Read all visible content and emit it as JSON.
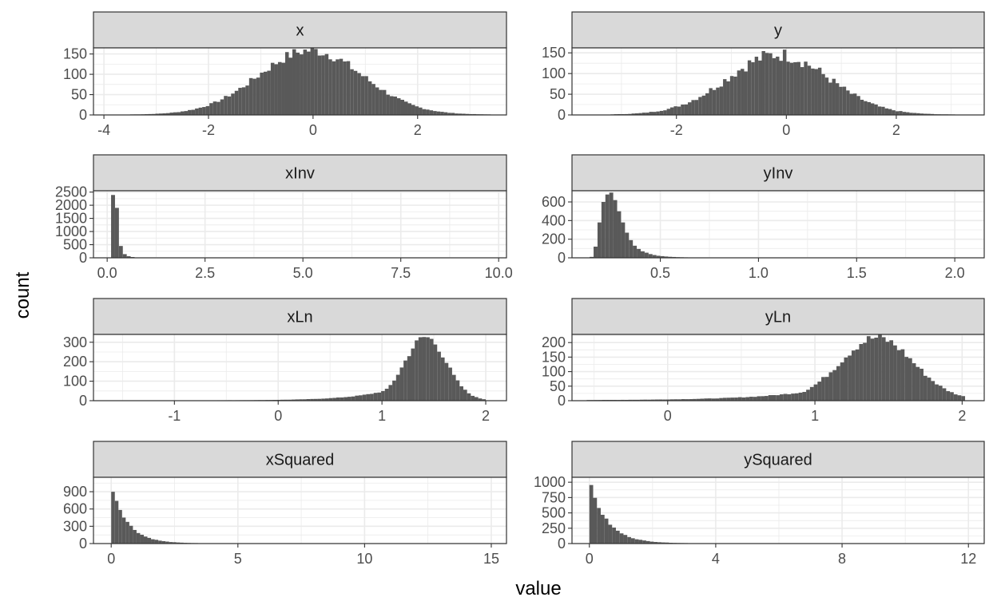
{
  "xlabel": "value",
  "ylabel": "count",
  "colors": {
    "bar": "#595959",
    "strip_bg": "#d9d9d9",
    "panel_border": "#333333",
    "grid": "#ebebeb",
    "tick_text": "#4d4d4d"
  },
  "chart_data": [
    {
      "type": "bar",
      "title": "x",
      "xlim": [
        -4.2,
        3.7
      ],
      "ylim": [
        0,
        165
      ],
      "xticks": [
        {
          "v": -4,
          "label": "-4"
        },
        {
          "v": -2,
          "label": "-2"
        },
        {
          "v": 0,
          "label": "0"
        },
        {
          "v": 2,
          "label": "2"
        }
      ],
      "yticks": [
        {
          "v": 0,
          "label": "0"
        },
        {
          "v": 50,
          "label": "50"
        },
        {
          "v": 100,
          "label": "100"
        },
        {
          "v": 150,
          "label": "150"
        }
      ],
      "hist": {
        "start": -3.5,
        "end": 3.4,
        "center": -0.05,
        "sd": 1.0,
        "peak": 158,
        "floor": 0.8,
        "noise": 0.09
      }
    },
    {
      "type": "bar",
      "title": "y",
      "xlim": [
        -3.9,
        3.6
      ],
      "ylim": [
        0,
        162
      ],
      "xticks": [
        {
          "v": -2,
          "label": "-2"
        },
        {
          "v": 0,
          "label": "0"
        },
        {
          "v": 2,
          "label": "2"
        }
      ],
      "yticks": [
        {
          "v": 0,
          "label": "0"
        },
        {
          "v": 50,
          "label": "50"
        },
        {
          "v": 100,
          "label": "100"
        },
        {
          "v": 150,
          "label": "150"
        }
      ],
      "hist": {
        "start": -3.2,
        "end": 3.2,
        "center": -0.15,
        "sd": 0.92,
        "peak": 145,
        "floor": 0.8,
        "noise": 0.12
      }
    },
    {
      "type": "bar",
      "title": "xInv",
      "xlim": [
        -0.35,
        10.2
      ],
      "ylim": [
        0,
        2550
      ],
      "xticks": [
        {
          "v": 0,
          "label": "0.0"
        },
        {
          "v": 2.5,
          "label": "2.5"
        },
        {
          "v": 5,
          "label": "5.0"
        },
        {
          "v": 7.5,
          "label": "7.5"
        },
        {
          "v": 10,
          "label": "10.0"
        }
      ],
      "yticks": [
        {
          "v": 0,
          "label": "0"
        },
        {
          "v": 500,
          "label": "500"
        },
        {
          "v": 1000,
          "label": "1000"
        },
        {
          "v": 1500,
          "label": "1500"
        },
        {
          "v": 2000,
          "label": "2000"
        },
        {
          "v": 2500,
          "label": "2500"
        }
      ],
      "bars": [
        {
          "x0": 0.0,
          "x1": 0.1,
          "c": 15
        },
        {
          "x0": 0.1,
          "x1": 0.2,
          "c": 2390
        },
        {
          "x0": 0.2,
          "x1": 0.3,
          "c": 1900
        },
        {
          "x0": 0.3,
          "x1": 0.4,
          "c": 450
        },
        {
          "x0": 0.4,
          "x1": 0.5,
          "c": 140
        },
        {
          "x0": 0.5,
          "x1": 0.6,
          "c": 60
        },
        {
          "x0": 0.6,
          "x1": 0.7,
          "c": 30
        },
        {
          "x0": 0.7,
          "x1": 0.8,
          "c": 15
        },
        {
          "x0": 0.8,
          "x1": 0.9,
          "c": 8
        },
        {
          "x0": 0.9,
          "x1": 1.0,
          "c": 5
        },
        {
          "x0": 1.0,
          "x1": 1.1,
          "c": 3
        }
      ]
    },
    {
      "type": "bar",
      "title": "yInv",
      "xlim": [
        0.05,
        2.15
      ],
      "ylim": [
        0,
        720
      ],
      "xticks": [
        {
          "v": 0.5,
          "label": "0.5"
        },
        {
          "v": 1.0,
          "label": "1.0"
        },
        {
          "v": 1.5,
          "label": "1.5"
        },
        {
          "v": 2.0,
          "label": "2.0"
        }
      ],
      "yticks": [
        {
          "v": 0,
          "label": "0"
        },
        {
          "v": 200,
          "label": "200"
        },
        {
          "v": 400,
          "label": "400"
        },
        {
          "v": 600,
          "label": "600"
        }
      ],
      "bars": [
        {
          "x0": 0.14,
          "x1": 0.16,
          "c": 10
        },
        {
          "x0": 0.16,
          "x1": 0.18,
          "c": 120
        },
        {
          "x0": 0.18,
          "x1": 0.2,
          "c": 380
        },
        {
          "x0": 0.2,
          "x1": 0.22,
          "c": 600
        },
        {
          "x0": 0.22,
          "x1": 0.24,
          "c": 680
        },
        {
          "x0": 0.24,
          "x1": 0.26,
          "c": 700
        },
        {
          "x0": 0.26,
          "x1": 0.28,
          "c": 620
        },
        {
          "x0": 0.28,
          "x1": 0.3,
          "c": 500
        },
        {
          "x0": 0.3,
          "x1": 0.32,
          "c": 380
        },
        {
          "x0": 0.32,
          "x1": 0.34,
          "c": 270
        },
        {
          "x0": 0.34,
          "x1": 0.36,
          "c": 190
        },
        {
          "x0": 0.36,
          "x1": 0.38,
          "c": 130
        },
        {
          "x0": 0.38,
          "x1": 0.4,
          "c": 95
        },
        {
          "x0": 0.4,
          "x1": 0.42,
          "c": 70
        },
        {
          "x0": 0.42,
          "x1": 0.44,
          "c": 55
        },
        {
          "x0": 0.44,
          "x1": 0.46,
          "c": 40
        },
        {
          "x0": 0.46,
          "x1": 0.48,
          "c": 30
        },
        {
          "x0": 0.48,
          "x1": 0.5,
          "c": 22
        },
        {
          "x0": 0.5,
          "x1": 0.52,
          "c": 18
        },
        {
          "x0": 0.52,
          "x1": 0.54,
          "c": 14
        },
        {
          "x0": 0.54,
          "x1": 0.56,
          "c": 11
        },
        {
          "x0": 0.56,
          "x1": 0.58,
          "c": 9
        },
        {
          "x0": 0.58,
          "x1": 0.6,
          "c": 7
        },
        {
          "x0": 0.6,
          "x1": 0.62,
          "c": 6
        },
        {
          "x0": 0.62,
          "x1": 0.64,
          "c": 5
        },
        {
          "x0": 0.64,
          "x1": 0.66,
          "c": 4
        },
        {
          "x0": 0.66,
          "x1": 0.68,
          "c": 4
        },
        {
          "x0": 0.68,
          "x1": 0.7,
          "c": 3
        },
        {
          "x0": 0.7,
          "x1": 0.72,
          "c": 3
        },
        {
          "x0": 0.72,
          "x1": 0.74,
          "c": 3
        },
        {
          "x0": 0.74,
          "x1": 0.76,
          "c": 2
        },
        {
          "x0": 0.76,
          "x1": 0.78,
          "c": 2
        },
        {
          "x0": 0.78,
          "x1": 0.8,
          "c": 2
        },
        {
          "x0": 0.8,
          "x1": 0.82,
          "c": 2
        },
        {
          "x0": 0.84,
          "x1": 0.86,
          "c": 2
        },
        {
          "x0": 0.88,
          "x1": 0.9,
          "c": 2
        },
        {
          "x0": 0.92,
          "x1": 0.94,
          "c": 2
        },
        {
          "x0": 0.98,
          "x1": 1.0,
          "c": 2
        },
        {
          "x0": 1.02,
          "x1": 1.04,
          "c": 2
        },
        {
          "x0": 1.06,
          "x1": 1.08,
          "c": 2
        },
        {
          "x0": 1.12,
          "x1": 1.14,
          "c": 2
        },
        {
          "x0": 1.2,
          "x1": 1.22,
          "c": 2
        },
        {
          "x0": 1.26,
          "x1": 1.28,
          "c": 2
        },
        {
          "x0": 1.4,
          "x1": 1.42,
          "c": 2
        },
        {
          "x0": 2.08,
          "x1": 2.1,
          "c": 2
        }
      ]
    },
    {
      "type": "bar",
      "title": "xLn",
      "xlim": [
        -1.78,
        2.2
      ],
      "ylim": [
        0,
        340
      ],
      "xticks": [
        {
          "v": -1,
          "label": "-1"
        },
        {
          "v": 0,
          "label": "0"
        },
        {
          "v": 1,
          "label": "1"
        },
        {
          "v": 2,
          "label": "2"
        }
      ],
      "yticks": [
        {
          "v": 0,
          "label": "0"
        },
        {
          "v": 100,
          "label": "100"
        },
        {
          "v": 200,
          "label": "200"
        },
        {
          "v": 300,
          "label": "300"
        }
      ],
      "hist": {
        "start": -1.6,
        "end": 2.0,
        "center": 1.42,
        "sd": 0.2,
        "peak": 325,
        "floor": 1.5,
        "noise": 0.06,
        "taillam": 1.15,
        "skew": true
      }
    },
    {
      "type": "bar",
      "title": "yLn",
      "xlim": [
        -0.65,
        2.15
      ],
      "ylim": [
        0,
        228
      ],
      "xticks": [
        {
          "v": 0,
          "label": "0"
        },
        {
          "v": 1,
          "label": "1"
        },
        {
          "v": 2,
          "label": "2"
        }
      ],
      "yticks": [
        {
          "v": 0,
          "label": "0"
        },
        {
          "v": 50,
          "label": "50"
        },
        {
          "v": 100,
          "label": "100"
        },
        {
          "v": 150,
          "label": "150"
        },
        {
          "v": 200,
          "label": "200"
        }
      ],
      "hist": {
        "start": -0.55,
        "end": 2.02,
        "center": 1.42,
        "sd": 0.25,
        "peak": 215,
        "floor": 1.5,
        "noise": 0.08,
        "taillam": 1.3,
        "skew": true
      }
    },
    {
      "type": "bar",
      "title": "xSquared",
      "xlim": [
        -0.7,
        15.6
      ],
      "ylim": [
        0,
        1150
      ],
      "xticks": [
        {
          "v": 0,
          "label": "0"
        },
        {
          "v": 5,
          "label": "5"
        },
        {
          "v": 10,
          "label": "10"
        },
        {
          "v": 15,
          "label": "15"
        }
      ],
      "yticks": [
        {
          "v": 0,
          "label": "0"
        },
        {
          "v": 300,
          "label": "300"
        },
        {
          "v": 600,
          "label": "600"
        },
        {
          "v": 900,
          "label": "900"
        }
      ],
      "hist": {
        "start": 0,
        "end": 6.0,
        "n": 42,
        "decay": true,
        "peak": 1050,
        "lam": 1.0,
        "floor": 3,
        "noise": 0.05
      }
    },
    {
      "type": "bar",
      "title": "ySquared",
      "xlim": [
        -0.55,
        12.5
      ],
      "ylim": [
        0,
        1080
      ],
      "xticks": [
        {
          "v": 0,
          "label": "0"
        },
        {
          "v": 4,
          "label": "4"
        },
        {
          "v": 8,
          "label": "8"
        },
        {
          "v": 12,
          "label": "12"
        }
      ],
      "yticks": [
        {
          "v": 0,
          "label": "0"
        },
        {
          "v": 250,
          "label": "250"
        },
        {
          "v": 500,
          "label": "500"
        },
        {
          "v": 750,
          "label": "750"
        },
        {
          "v": 1000,
          "label": "1000"
        }
      ],
      "hist": {
        "start": 0,
        "end": 6.0,
        "n": 50,
        "decay": true,
        "peak": 1010,
        "lam": 0.9,
        "floor": 3,
        "noise": 0.05
      }
    }
  ]
}
